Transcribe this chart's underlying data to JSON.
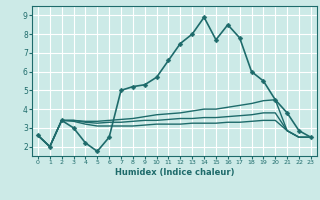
{
  "xlabel": "Humidex (Indice chaleur)",
  "background_color": "#cceae7",
  "grid_color": "#ffffff",
  "line_color": "#1e6b6b",
  "xlim": [
    -0.5,
    23.5
  ],
  "ylim": [
    1.5,
    9.5
  ],
  "xticks": [
    0,
    1,
    2,
    3,
    4,
    5,
    6,
    7,
    8,
    9,
    10,
    11,
    12,
    13,
    14,
    15,
    16,
    17,
    18,
    19,
    20,
    21,
    22,
    23
  ],
  "yticks": [
    2,
    3,
    4,
    5,
    6,
    7,
    8,
    9
  ],
  "lines": [
    {
      "x": [
        0,
        1,
        2,
        3,
        4,
        5,
        6,
        7,
        8,
        9,
        10,
        11,
        12,
        13,
        14,
        15,
        16,
        17,
        18,
        19,
        20,
        21,
        22,
        23
      ],
      "y": [
        2.6,
        2.0,
        3.4,
        3.0,
        2.2,
        1.75,
        2.5,
        5.0,
        5.2,
        5.3,
        5.7,
        6.6,
        7.5,
        8.0,
        8.9,
        7.7,
        8.5,
        7.8,
        6.0,
        5.5,
        4.5,
        3.8,
        2.85,
        2.5
      ],
      "marker": "D",
      "markersize": 2.5,
      "linewidth": 1.2,
      "has_marker": true
    },
    {
      "x": [
        0,
        1,
        2,
        3,
        4,
        5,
        6,
        7,
        8,
        9,
        10,
        11,
        12,
        13,
        14,
        15,
        16,
        17,
        18,
        19,
        20,
        21,
        22,
        23
      ],
      "y": [
        2.6,
        2.0,
        3.4,
        3.4,
        3.35,
        3.35,
        3.4,
        3.45,
        3.5,
        3.6,
        3.7,
        3.75,
        3.8,
        3.9,
        4.0,
        4.0,
        4.1,
        4.2,
        4.3,
        4.45,
        4.5,
        2.85,
        2.5,
        2.5
      ],
      "marker": null,
      "markersize": 0,
      "linewidth": 1.0,
      "has_marker": false
    },
    {
      "x": [
        0,
        1,
        2,
        3,
        4,
        5,
        6,
        7,
        8,
        9,
        10,
        11,
        12,
        13,
        14,
        15,
        16,
        17,
        18,
        19,
        20,
        21,
        22,
        23
      ],
      "y": [
        2.6,
        2.0,
        3.4,
        3.4,
        3.3,
        3.25,
        3.3,
        3.3,
        3.35,
        3.4,
        3.4,
        3.45,
        3.5,
        3.5,
        3.55,
        3.55,
        3.6,
        3.65,
        3.7,
        3.8,
        3.8,
        2.85,
        2.5,
        2.5
      ],
      "marker": null,
      "markersize": 0,
      "linewidth": 1.0,
      "has_marker": false
    },
    {
      "x": [
        0,
        1,
        2,
        3,
        4,
        5,
        6,
        7,
        8,
        9,
        10,
        11,
        12,
        13,
        14,
        15,
        16,
        17,
        18,
        19,
        20,
        21,
        22,
        23
      ],
      "y": [
        2.6,
        2.0,
        3.4,
        3.35,
        3.2,
        3.1,
        3.1,
        3.1,
        3.1,
        3.15,
        3.2,
        3.2,
        3.2,
        3.25,
        3.25,
        3.25,
        3.3,
        3.3,
        3.35,
        3.4,
        3.4,
        2.85,
        2.5,
        2.5
      ],
      "marker": null,
      "markersize": 0,
      "linewidth": 1.0,
      "has_marker": false
    }
  ]
}
